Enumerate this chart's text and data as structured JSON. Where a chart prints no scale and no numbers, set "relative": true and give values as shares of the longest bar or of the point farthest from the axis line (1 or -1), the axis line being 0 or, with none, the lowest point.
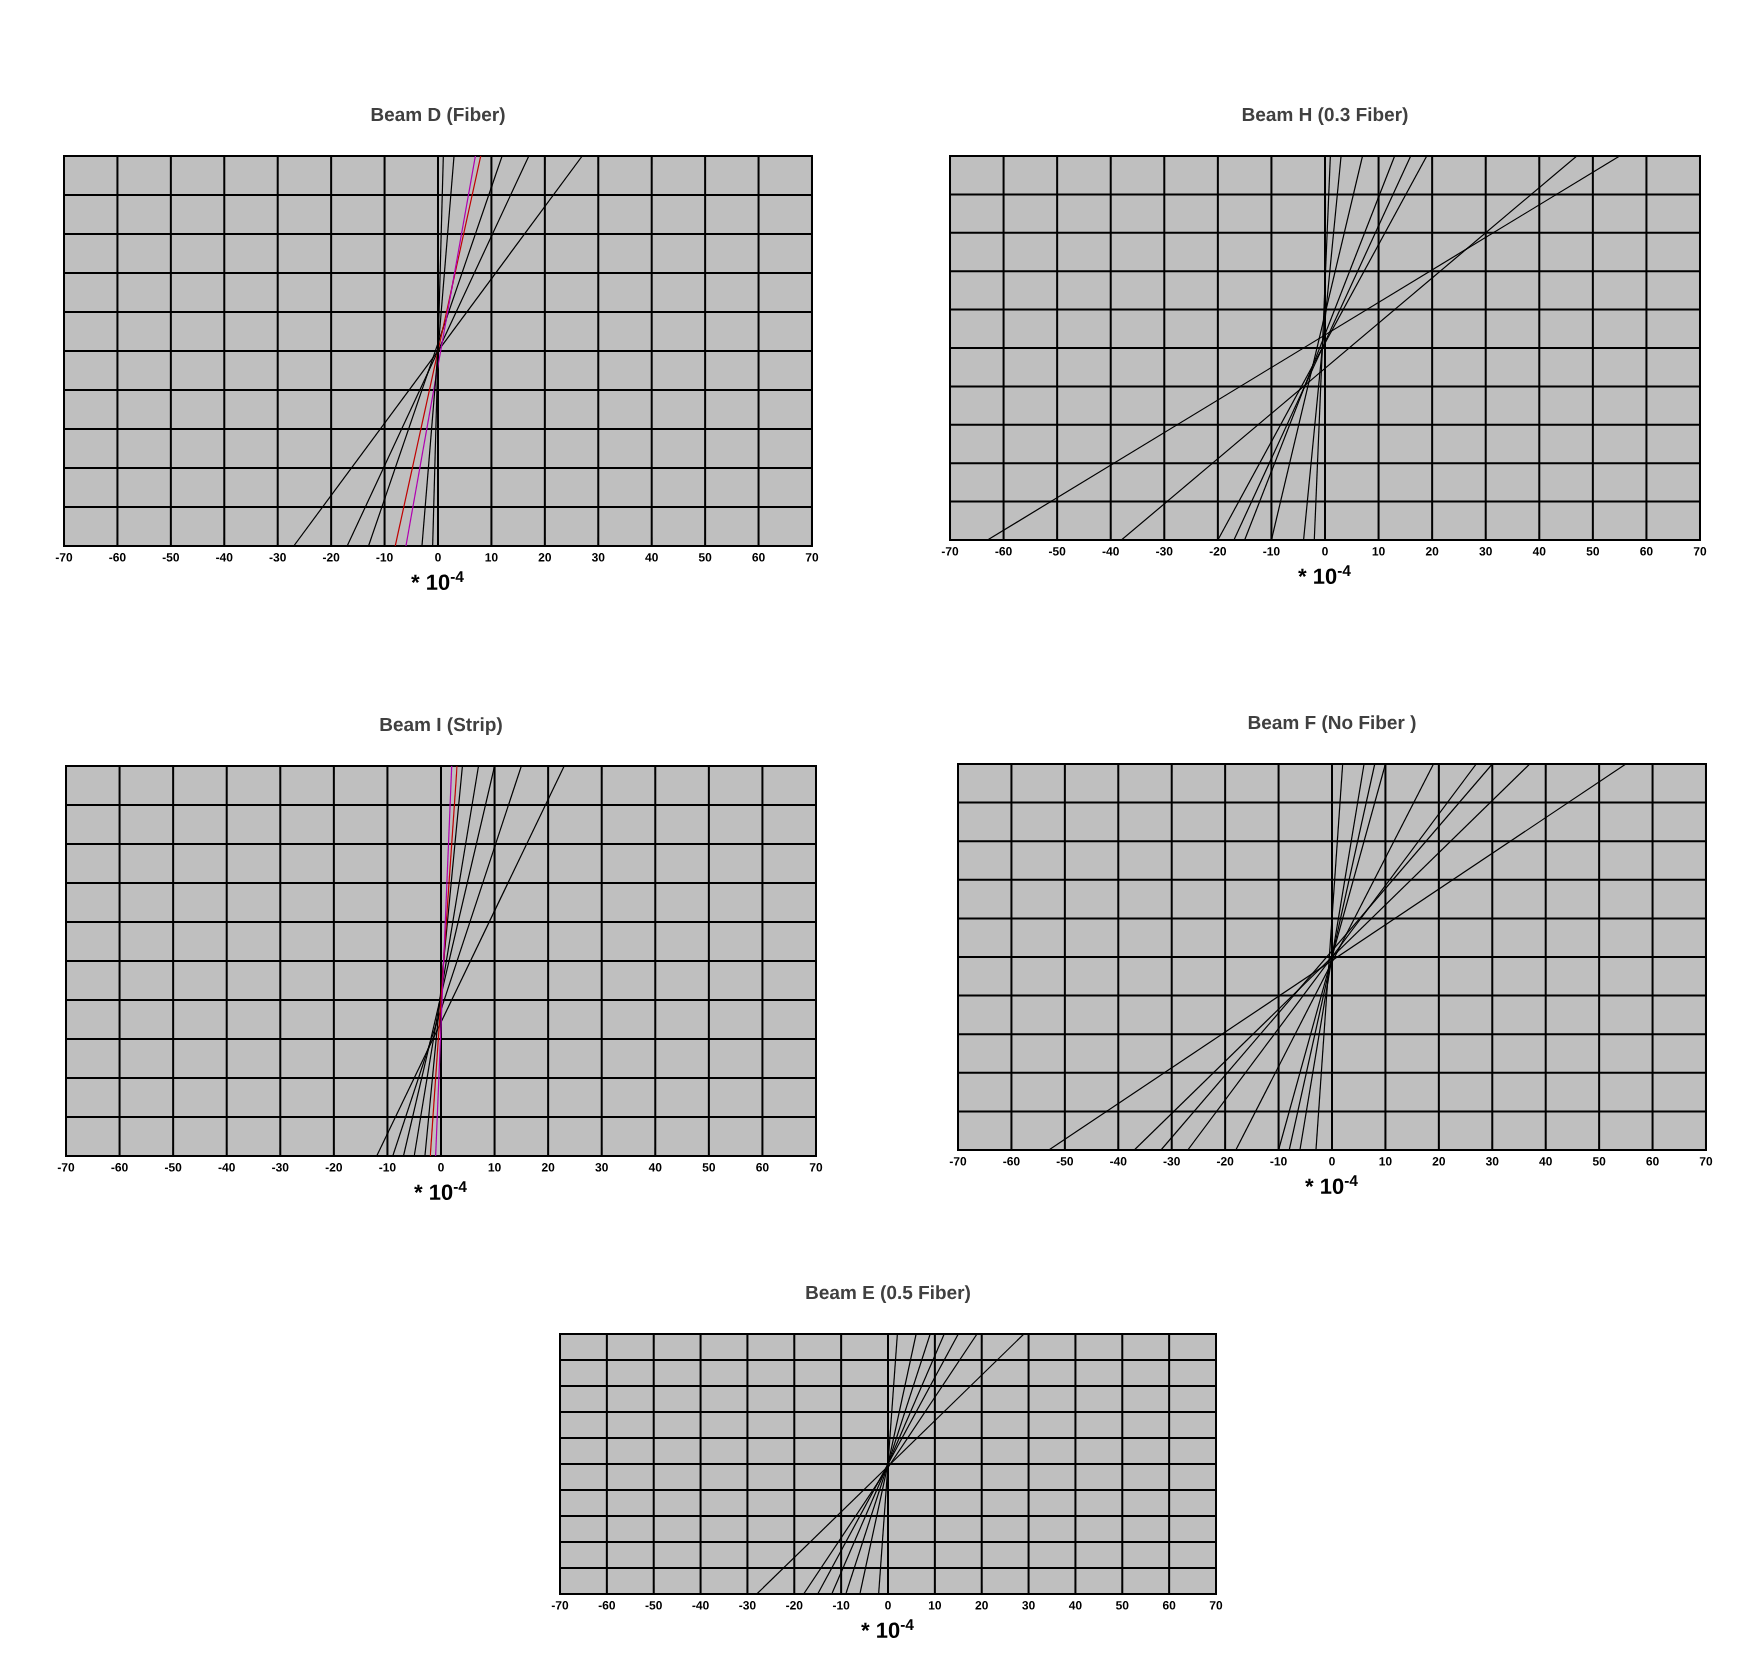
{
  "chart_data": [
    {
      "type": "line",
      "title": "Beam D (Fiber)",
      "xlabel": "* 10$^{-4}$",
      "xlim": [
        -70,
        70
      ],
      "xticks": [
        -70,
        -60,
        -50,
        -40,
        -30,
        -20,
        -10,
        0,
        10,
        20,
        30,
        40,
        50,
        60,
        70
      ],
      "relative": true,
      "grid": true,
      "series": [
        {
          "color": "#000000",
          "x": [
            -27,
            27
          ],
          "values": [
            0,
            1
          ]
        },
        {
          "color": "#000000",
          "x": [
            -17,
            17
          ],
          "values": [
            0,
            1
          ]
        },
        {
          "color": "#000000",
          "x": [
            -13,
            12
          ],
          "values": [
            0,
            1
          ]
        },
        {
          "color": "#c00000",
          "x": [
            -8,
            8
          ],
          "values": [
            0,
            1
          ]
        },
        {
          "color": "#b000b0",
          "x": [
            -6,
            7
          ],
          "values": [
            0,
            1
          ]
        },
        {
          "color": "#000000",
          "x": [
            -3,
            3
          ],
          "values": [
            0,
            1
          ]
        },
        {
          "color": "#000000",
          "x": [
            -1,
            1
          ],
          "values": [
            0,
            1
          ]
        }
      ]
    },
    {
      "type": "line",
      "title": "Beam H (0.3 Fiber)",
      "xlabel": "* 10$^{-4}$",
      "xlim": [
        -70,
        70
      ],
      "xticks": [
        -70,
        -60,
        -50,
        -40,
        -30,
        -20,
        -10,
        0,
        10,
        20,
        30,
        40,
        50,
        60,
        70
      ],
      "relative": true,
      "grid": true,
      "series": [
        {
          "color": "#000000",
          "x": [
            -63,
            55
          ],
          "values": [
            0,
            1
          ]
        },
        {
          "color": "#000000",
          "x": [
            -38,
            47
          ],
          "values": [
            0,
            1
          ]
        },
        {
          "color": "#000000",
          "x": [
            -20,
            19
          ],
          "values": [
            0,
            1
          ]
        },
        {
          "color": "#000000",
          "x": [
            -17,
            16
          ],
          "values": [
            0,
            1
          ]
        },
        {
          "color": "#000000",
          "x": [
            -15,
            13
          ],
          "values": [
            0,
            1
          ]
        },
        {
          "color": "#000000",
          "x": [
            -10,
            7
          ],
          "values": [
            0,
            1
          ]
        },
        {
          "color": "#000000",
          "x": [
            -4,
            3
          ],
          "values": [
            0,
            1
          ]
        },
        {
          "color": "#000000",
          "x": [
            -2,
            1
          ],
          "values": [
            0,
            1
          ]
        }
      ]
    },
    {
      "type": "line",
      "title": "Beam I (Strip)",
      "xlabel": "* 10$^{-4}$",
      "xlim": [
        -70,
        70
      ],
      "xticks": [
        -70,
        -60,
        -50,
        -40,
        -30,
        -20,
        -10,
        0,
        10,
        20,
        30,
        40,
        50,
        60,
        70
      ],
      "relative": true,
      "grid": true,
      "series": [
        {
          "color": "#000000",
          "x": [
            -12,
            23
          ],
          "values": [
            0,
            1
          ]
        },
        {
          "color": "#000000",
          "x": [
            -9,
            15
          ],
          "values": [
            0,
            1
          ]
        },
        {
          "color": "#000000",
          "x": [
            -7,
            10
          ],
          "values": [
            0,
            1
          ]
        },
        {
          "color": "#000000",
          "x": [
            -5,
            7
          ],
          "values": [
            0,
            1
          ]
        },
        {
          "color": "#000000",
          "x": [
            -3,
            4
          ],
          "values": [
            0,
            1
          ]
        },
        {
          "color": "#c00000",
          "x": [
            -2,
            3
          ],
          "values": [
            0,
            1
          ]
        },
        {
          "color": "#b000b0",
          "x": [
            -1,
            2
          ],
          "values": [
            0,
            1
          ]
        }
      ]
    },
    {
      "type": "line",
      "title": "Beam F (No Fiber )",
      "xlabel": "* 10$^{-4}$",
      "xlim": [
        -70,
        70
      ],
      "xticks": [
        -70,
        -60,
        -50,
        -40,
        -30,
        -20,
        -10,
        0,
        10,
        20,
        30,
        40,
        50,
        60,
        70
      ],
      "relative": true,
      "grid": true,
      "series": [
        {
          "color": "#000000",
          "x": [
            -53,
            55
          ],
          "values": [
            0,
            1
          ]
        },
        {
          "color": "#000000",
          "x": [
            -37,
            37
          ],
          "values": [
            0,
            1
          ]
        },
        {
          "color": "#000000",
          "x": [
            -32,
            30
          ],
          "values": [
            0,
            1
          ]
        },
        {
          "color": "#000000",
          "x": [
            -27,
            27
          ],
          "values": [
            0,
            1
          ]
        },
        {
          "color": "#000000",
          "x": [
            -18,
            19
          ],
          "values": [
            0,
            1
          ]
        },
        {
          "color": "#000000",
          "x": [
            -10,
            10
          ],
          "values": [
            0,
            1
          ]
        },
        {
          "color": "#000000",
          "x": [
            -8,
            8
          ],
          "values": [
            0,
            1
          ]
        },
        {
          "color": "#000000",
          "x": [
            -6,
            6
          ],
          "values": [
            0,
            1
          ]
        },
        {
          "color": "#000000",
          "x": [
            -3,
            2
          ],
          "values": [
            0,
            1
          ]
        }
      ]
    },
    {
      "type": "line",
      "title": "Beam E (0.5 Fiber)",
      "xlabel": "* 10$^{-4}$",
      "xlim": [
        -70,
        70
      ],
      "xticks": [
        -70,
        -60,
        -50,
        -40,
        -30,
        -20,
        -10,
        0,
        10,
        20,
        30,
        40,
        50,
        60,
        70
      ],
      "relative": true,
      "grid": true,
      "series": [
        {
          "color": "#000000",
          "x": [
            -28,
            29
          ],
          "values": [
            0,
            1
          ]
        },
        {
          "color": "#000000",
          "x": [
            -18,
            19
          ],
          "values": [
            0,
            1
          ]
        },
        {
          "color": "#000000",
          "x": [
            -15,
            15
          ],
          "values": [
            0,
            1
          ]
        },
        {
          "color": "#000000",
          "x": [
            -12,
            12
          ],
          "values": [
            0,
            1
          ]
        },
        {
          "color": "#000000",
          "x": [
            -9,
            9
          ],
          "values": [
            0,
            1
          ]
        },
        {
          "color": "#000000",
          "x": [
            -6,
            6
          ],
          "values": [
            0,
            1
          ]
        },
        {
          "color": "#000000",
          "x": [
            -2,
            2
          ],
          "values": [
            0,
            1
          ]
        }
      ]
    }
  ]
}
